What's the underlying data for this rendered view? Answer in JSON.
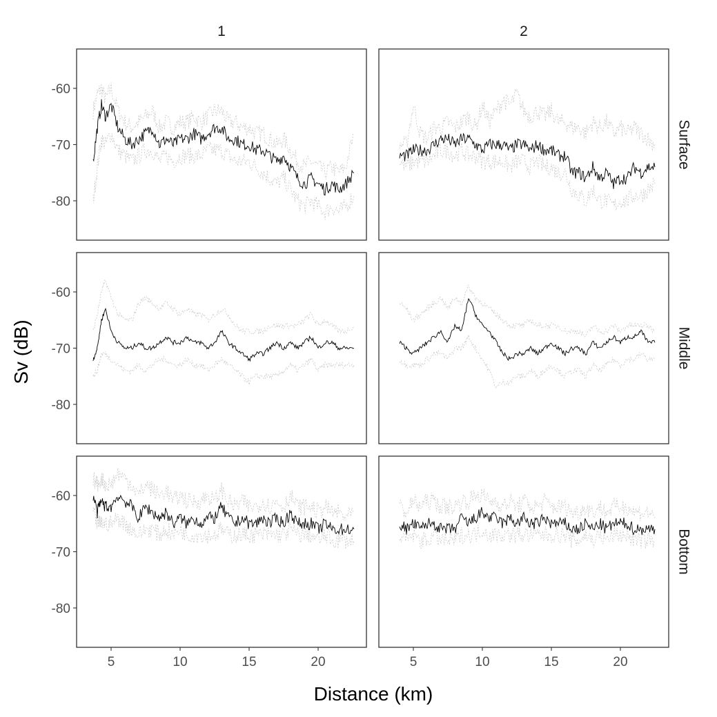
{
  "chart_data": {
    "type": "line",
    "xlabel": "Distance (km)",
    "ylabel": "Sv (dB)",
    "columns": [
      "1",
      "2"
    ],
    "rows": [
      "Surface",
      "Middle",
      "Bottom"
    ],
    "xlim": [
      2.5,
      23.5
    ],
    "ylim": [
      -87,
      -53
    ],
    "xticks": [
      5,
      10,
      15,
      20
    ],
    "yticks": [
      -60,
      -70,
      -80
    ],
    "xtick_labels": [
      "5",
      "10",
      "15",
      "20"
    ],
    "ytick_labels": [
      "-60",
      "-70",
      "-80"
    ],
    "grid": false,
    "legend": "none",
    "panels": [
      {
        "column": "1",
        "row": "Surface",
        "x": [
          3.7,
          4.0,
          4.3,
          4.6,
          5.0,
          5.5,
          6.0,
          6.5,
          7.0,
          7.5,
          8.0,
          8.5,
          9.0,
          9.5,
          10.0,
          10.5,
          11.0,
          11.5,
          12.0,
          12.5,
          13.0,
          13.5,
          14.0,
          14.5,
          15.0,
          15.5,
          16.0,
          16.5,
          17.0,
          17.5,
          18.0,
          18.5,
          19.0,
          19.5,
          20.0,
          20.5,
          21.0,
          21.5,
          22.0,
          22.6
        ],
        "mean": [
          -73,
          -67,
          -63,
          -65,
          -63,
          -67,
          -69,
          -70,
          -69,
          -68,
          -67,
          -70,
          -69,
          -70,
          -69,
          -69,
          -68,
          -69,
          -68,
          -67,
          -67,
          -69,
          -69,
          -70,
          -70,
          -71,
          -71,
          -72,
          -73,
          -72,
          -74,
          -76,
          -77,
          -76,
          -77,
          -78,
          -77,
          -78,
          -77,
          -75
        ],
        "upper": [
          -64,
          -61,
          -60,
          -62,
          -60,
          -64,
          -66,
          -67,
          -66,
          -65,
          -64,
          -67,
          -66,
          -67,
          -66,
          -66,
          -65,
          -66,
          -65,
          -64,
          -64,
          -66,
          -66,
          -67,
          -67,
          -68,
          -68,
          -69,
          -70,
          -69,
          -71,
          -73,
          -74,
          -73,
          -74,
          -75,
          -74,
          -75,
          -74,
          -68
        ],
        "lower": [
          -80,
          -74,
          -69,
          -70,
          -68,
          -71,
          -72,
          -73,
          -72,
          -71,
          -71,
          -73,
          -72,
          -73,
          -72,
          -72,
          -72,
          -72,
          -71,
          -71,
          -71,
          -72,
          -73,
          -73,
          -73,
          -74,
          -75,
          -76,
          -77,
          -76,
          -78,
          -80,
          -81,
          -80,
          -81,
          -82,
          -81,
          -82,
          -81,
          -79
        ]
      },
      {
        "column": "2",
        "row": "Surface",
        "x": [
          4.0,
          4.5,
          5.0,
          5.5,
          6.0,
          6.5,
          7.0,
          7.5,
          8.0,
          8.5,
          9.0,
          9.5,
          10.0,
          10.5,
          11.0,
          11.5,
          12.0,
          12.5,
          13.0,
          13.5,
          14.0,
          14.5,
          15.0,
          15.5,
          16.0,
          16.5,
          17.0,
          17.5,
          18.0,
          18.5,
          19.0,
          19.5,
          20.0,
          20.5,
          21.0,
          21.5,
          22.0,
          22.5
        ],
        "mean": [
          -72,
          -72,
          -71,
          -71,
          -71,
          -70,
          -69,
          -69,
          -70,
          -69,
          -69,
          -70,
          -71,
          -70,
          -70,
          -70,
          -71,
          -70,
          -70,
          -71,
          -70,
          -71,
          -71,
          -72,
          -72,
          -75,
          -75,
          -76,
          -74,
          -76,
          -75,
          -77,
          -76,
          -76,
          -74,
          -75,
          -74,
          -74
        ],
        "upper": [
          -70,
          -70,
          -63,
          -68,
          -69,
          -67,
          -67,
          -66,
          -67,
          -66,
          -65,
          -67,
          -63,
          -66,
          -64,
          -62,
          -63,
          -61,
          -64,
          -65,
          -64,
          -65,
          -64,
          -66,
          -66,
          -67,
          -67,
          -68,
          -66,
          -67,
          -66,
          -68,
          -67,
          -68,
          -67,
          -68,
          -69,
          -70
        ],
        "lower": [
          -73,
          -74,
          -73,
          -73,
          -73,
          -72,
          -71,
          -71,
          -72,
          -71,
          -72,
          -72,
          -73,
          -73,
          -73,
          -73,
          -74,
          -73,
          -73,
          -74,
          -73,
          -74,
          -74,
          -75,
          -75,
          -78,
          -79,
          -80,
          -78,
          -80,
          -80,
          -81,
          -80,
          -80,
          -79,
          -79,
          -78,
          -77
        ]
      },
      {
        "column": "1",
        "row": "Middle",
        "x": [
          3.7,
          4.0,
          4.3,
          4.6,
          5.0,
          5.5,
          6.0,
          6.5,
          7.0,
          7.5,
          8.0,
          8.5,
          9.0,
          9.5,
          10.0,
          10.5,
          11.0,
          11.5,
          12.0,
          12.5,
          13.0,
          13.5,
          14.0,
          14.5,
          15.0,
          15.5,
          16.0,
          16.5,
          17.0,
          17.5,
          18.0,
          18.5,
          19.0,
          19.5,
          20.0,
          20.5,
          21.0,
          21.5,
          22.0,
          22.6
        ],
        "mean": [
          -72,
          -70,
          -65,
          -63,
          -67,
          -69,
          -70,
          -70,
          -69,
          -70,
          -70,
          -69,
          -68,
          -69,
          -69,
          -68,
          -69,
          -69,
          -70,
          -69,
          -67,
          -69,
          -70,
          -71,
          -72,
          -71,
          -71,
          -70,
          -69,
          -70,
          -69,
          -70,
          -69,
          -68,
          -70,
          -69,
          -69,
          -70,
          -70,
          -70
        ],
        "upper": [
          -67,
          -64,
          -60,
          -58,
          -61,
          -64,
          -65,
          -65,
          -62,
          -61,
          -62,
          -63,
          -62,
          -63,
          -64,
          -63,
          -64,
          -64,
          -65,
          -64,
          -63,
          -64,
          -66,
          -67,
          -67,
          -67,
          -67,
          -66,
          -66,
          -66,
          -66,
          -66,
          -65,
          -64,
          -66,
          -65,
          -66,
          -67,
          -67,
          -66
        ],
        "lower": [
          -75,
          -74,
          -71,
          -71,
          -72,
          -73,
          -74,
          -74,
          -73,
          -74,
          -73,
          -72,
          -72,
          -73,
          -73,
          -72,
          -73,
          -73,
          -74,
          -73,
          -72,
          -73,
          -74,
          -75,
          -76,
          -75,
          -75,
          -75,
          -75,
          -74,
          -73,
          -74,
          -73,
          -72,
          -74,
          -73,
          -73,
          -73,
          -73,
          -73
        ]
      },
      {
        "column": "2",
        "row": "Middle",
        "x": [
          4.0,
          4.5,
          5.0,
          5.5,
          6.0,
          6.5,
          7.0,
          7.5,
          8.0,
          8.5,
          9.0,
          9.5,
          10.0,
          10.5,
          11.0,
          11.5,
          12.0,
          12.5,
          13.0,
          13.5,
          14.0,
          14.5,
          15.0,
          15.5,
          16.0,
          16.5,
          17.0,
          17.5,
          18.0,
          18.5,
          19.0,
          19.5,
          20.0,
          20.5,
          21.0,
          21.5,
          22.0,
          22.5
        ],
        "mean": [
          -69,
          -70,
          -71,
          -70,
          -69,
          -68,
          -67,
          -69,
          -66,
          -67,
          -61,
          -64,
          -66,
          -67,
          -69,
          -71,
          -72,
          -71,
          -71,
          -70,
          -71,
          -70,
          -69,
          -70,
          -71,
          -70,
          -70,
          -71,
          -69,
          -70,
          -69,
          -68,
          -69,
          -68,
          -68,
          -67,
          -69,
          -69
        ],
        "upper": [
          -62,
          -63,
          -65,
          -64,
          -63,
          -62,
          -61,
          -63,
          -61,
          -62,
          -59,
          -61,
          -62,
          -63,
          -64,
          -65,
          -66,
          -66,
          -66,
          -65,
          -66,
          -66,
          -66,
          -66,
          -67,
          -67,
          -67,
          -68,
          -66,
          -67,
          -67,
          -66,
          -67,
          -66,
          -66,
          -66,
          -66,
          -67
        ],
        "lower": [
          -72,
          -73,
          -73,
          -73,
          -72,
          -71,
          -71,
          -72,
          -70,
          -70,
          -68,
          -70,
          -72,
          -74,
          -77,
          -76,
          -76,
          -75,
          -75,
          -74,
          -75,
          -74,
          -73,
          -74,
          -75,
          -74,
          -74,
          -75,
          -73,
          -74,
          -73,
          -72,
          -73,
          -72,
          -72,
          -71,
          -72,
          -72
        ]
      },
      {
        "column": "1",
        "row": "Bottom",
        "x": [
          3.7,
          4.0,
          4.3,
          4.6,
          5.0,
          5.5,
          6.0,
          6.5,
          7.0,
          7.5,
          8.0,
          8.5,
          9.0,
          9.5,
          10.0,
          10.5,
          11.0,
          11.5,
          12.0,
          12.5,
          13.0,
          13.5,
          14.0,
          14.5,
          15.0,
          15.5,
          16.0,
          16.5,
          17.0,
          17.5,
          18.0,
          18.5,
          19.0,
          19.5,
          20.0,
          20.5,
          21.0,
          21.5,
          22.0,
          22.6
        ],
        "mean": [
          -60,
          -63,
          -61,
          -62,
          -62,
          -60,
          -61,
          -62,
          -64,
          -62,
          -63,
          -64,
          -63,
          -65,
          -64,
          -65,
          -64,
          -65,
          -64,
          -64,
          -62,
          -64,
          -65,
          -64,
          -65,
          -65,
          -64,
          -65,
          -64,
          -65,
          -63,
          -65,
          -65,
          -65,
          -66,
          -65,
          -66,
          -66,
          -66,
          -66
        ],
        "upper": [
          -57,
          -58,
          -57,
          -58,
          -58,
          -56,
          -57,
          -58,
          -60,
          -58,
          -59,
          -60,
          -59,
          -61,
          -60,
          -61,
          -61,
          -61,
          -60,
          -61,
          -59,
          -61,
          -62,
          -61,
          -62,
          -62,
          -61,
          -62,
          -61,
          -62,
          -60,
          -62,
          -62,
          -62,
          -63,
          -62,
          -63,
          -63,
          -64,
          -63
        ],
        "lower": [
          -63,
          -65,
          -65,
          -65,
          -65,
          -64,
          -65,
          -66,
          -67,
          -66,
          -66,
          -67,
          -66,
          -67,
          -66,
          -67,
          -67,
          -67,
          -67,
          -67,
          -66,
          -67,
          -67,
          -67,
          -67,
          -67,
          -67,
          -67,
          -67,
          -67,
          -66,
          -67,
          -67,
          -67,
          -68,
          -67,
          -68,
          -68,
          -68,
          -68
        ]
      },
      {
        "column": "2",
        "row": "Bottom",
        "x": [
          4.0,
          4.5,
          5.0,
          5.5,
          6.0,
          6.5,
          7.0,
          7.5,
          8.0,
          8.5,
          9.0,
          9.5,
          10.0,
          10.5,
          11.0,
          11.5,
          12.0,
          12.5,
          13.0,
          13.5,
          14.0,
          14.5,
          15.0,
          15.5,
          16.0,
          16.5,
          17.0,
          17.5,
          18.0,
          18.5,
          19.0,
          19.5,
          20.0,
          20.5,
          21.0,
          21.5,
          22.0,
          22.5
        ],
        "mean": [
          -65,
          -66,
          -65,
          -66,
          -65,
          -65,
          -66,
          -66,
          -66,
          -64,
          -65,
          -64,
          -63,
          -64,
          -64,
          -65,
          -64,
          -65,
          -64,
          -65,
          -65,
          -64,
          -65,
          -65,
          -65,
          -66,
          -66,
          -65,
          -66,
          -65,
          -66,
          -65,
          -65,
          -65,
          -66,
          -66,
          -66,
          -66
        ],
        "upper": [
          -62,
          -63,
          -61,
          -62,
          -61,
          -61,
          -62,
          -62,
          -62,
          -61,
          -61,
          -60,
          -60,
          -61,
          -61,
          -62,
          -61,
          -62,
          -61,
          -62,
          -62,
          -61,
          -62,
          -62,
          -62,
          -63,
          -63,
          -62,
          -63,
          -62,
          -63,
          -62,
          -62,
          -62,
          -63,
          -63,
          -63,
          -64
        ],
        "lower": [
          -67,
          -68,
          -67,
          -68,
          -68,
          -67,
          -68,
          -68,
          -68,
          -67,
          -67,
          -67,
          -66,
          -67,
          -67,
          -67,
          -67,
          -67,
          -67,
          -67,
          -67,
          -67,
          -67,
          -67,
          -67,
          -68,
          -68,
          -67,
          -68,
          -67,
          -68,
          -67,
          -67,
          -67,
          -68,
          -68,
          -68,
          -68
        ]
      }
    ]
  }
}
